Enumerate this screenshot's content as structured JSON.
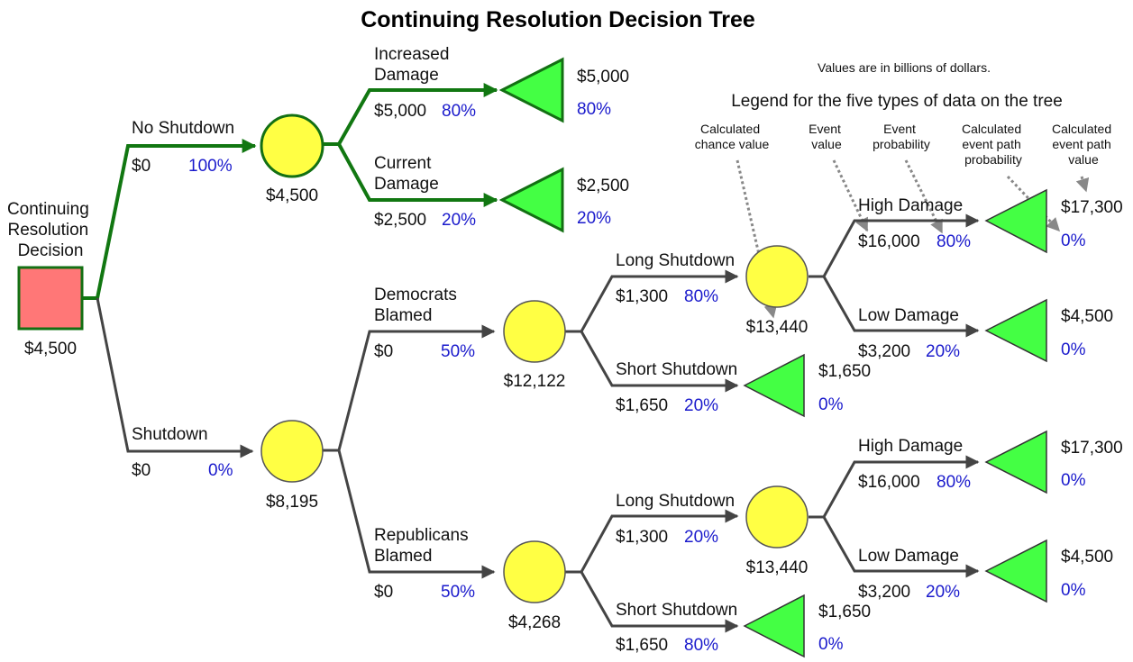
{
  "title": "Continuing Resolution Decision Tree",
  "note": "Values are in billions of dollars.",
  "legend": {
    "title": "Legend for the five types of data on the tree",
    "items": [
      [
        "Calculated",
        "chance value"
      ],
      [
        "Event",
        "value"
      ],
      [
        "Event",
        "probability"
      ],
      [
        "Calculated",
        "event path",
        "probability"
      ],
      [
        "Calculated",
        "event path",
        "value"
      ]
    ]
  },
  "colors": {
    "decision_fill": "#ff7777",
    "decision_stroke": "#137013",
    "chance_fill": "#ffff44",
    "terminal_fill": "#44ff44",
    "optimal_branch": "#117711",
    "branch": "#444444",
    "probability_text": "#1a1acc"
  },
  "root": {
    "label": [
      "Continuing",
      "Resolution",
      "Decision"
    ],
    "value": "$4,500"
  },
  "branches": {
    "no_shutdown": {
      "label": "No Shutdown",
      "value": "$0",
      "prob": "100%"
    },
    "shutdown": {
      "label": "Shutdown",
      "value": "$0",
      "prob": "0%"
    },
    "increased_damage": {
      "label": [
        "Increased",
        "Damage"
      ],
      "value": "$5,000",
      "prob": "80%"
    },
    "current_damage": {
      "label": [
        "Current",
        "Damage"
      ],
      "value": "$2,500",
      "prob": "20%"
    },
    "democrats_blamed": {
      "label": [
        "Democrats",
        "Blamed"
      ],
      "value": "$0",
      "prob": "50%"
    },
    "republicans_blamed": {
      "label": [
        "Republicans",
        "Blamed"
      ],
      "value": "$0",
      "prob": "50%"
    },
    "d_long_shutdown": {
      "label": "Long Shutdown",
      "value": "$1,300",
      "prob": "80%"
    },
    "d_short_shutdown": {
      "label": "Short Shutdown",
      "value": "$1,650",
      "prob": "20%"
    },
    "r_long_shutdown": {
      "label": "Long Shutdown",
      "value": "$1,300",
      "prob": "20%"
    },
    "r_short_shutdown": {
      "label": "Short Shutdown",
      "value": "$1,650",
      "prob": "80%"
    },
    "d_high_damage": {
      "label": "High Damage",
      "value": "$16,000",
      "prob": "80%"
    },
    "d_low_damage": {
      "label": "Low Damage",
      "value": "$3,200",
      "prob": "20%"
    },
    "r_high_damage": {
      "label": "High Damage",
      "value": "$16,000",
      "prob": "80%"
    },
    "r_low_damage": {
      "label": "Low Damage",
      "value": "$3,200",
      "prob": "20%"
    }
  },
  "chance_nodes": {
    "no_shutdown": "$4,500",
    "shutdown": "$8,195",
    "democrats": "$12,122",
    "republicans": "$4,268",
    "d_long": "$13,440",
    "r_long": "$13,440"
  },
  "terminals": {
    "increased_damage": {
      "value": "$5,000",
      "prob": "80%"
    },
    "current_damage": {
      "value": "$2,500",
      "prob": "20%"
    },
    "d_short": {
      "value": "$1,650",
      "prob": "0%"
    },
    "r_short": {
      "value": "$1,650",
      "prob": "0%"
    },
    "d_high": {
      "value": "$17,300",
      "prob": "0%"
    },
    "d_low": {
      "value": "$4,500",
      "prob": "0%"
    },
    "r_high": {
      "value": "$17,300",
      "prob": "0%"
    },
    "r_low": {
      "value": "$4,500",
      "prob": "0%"
    }
  }
}
